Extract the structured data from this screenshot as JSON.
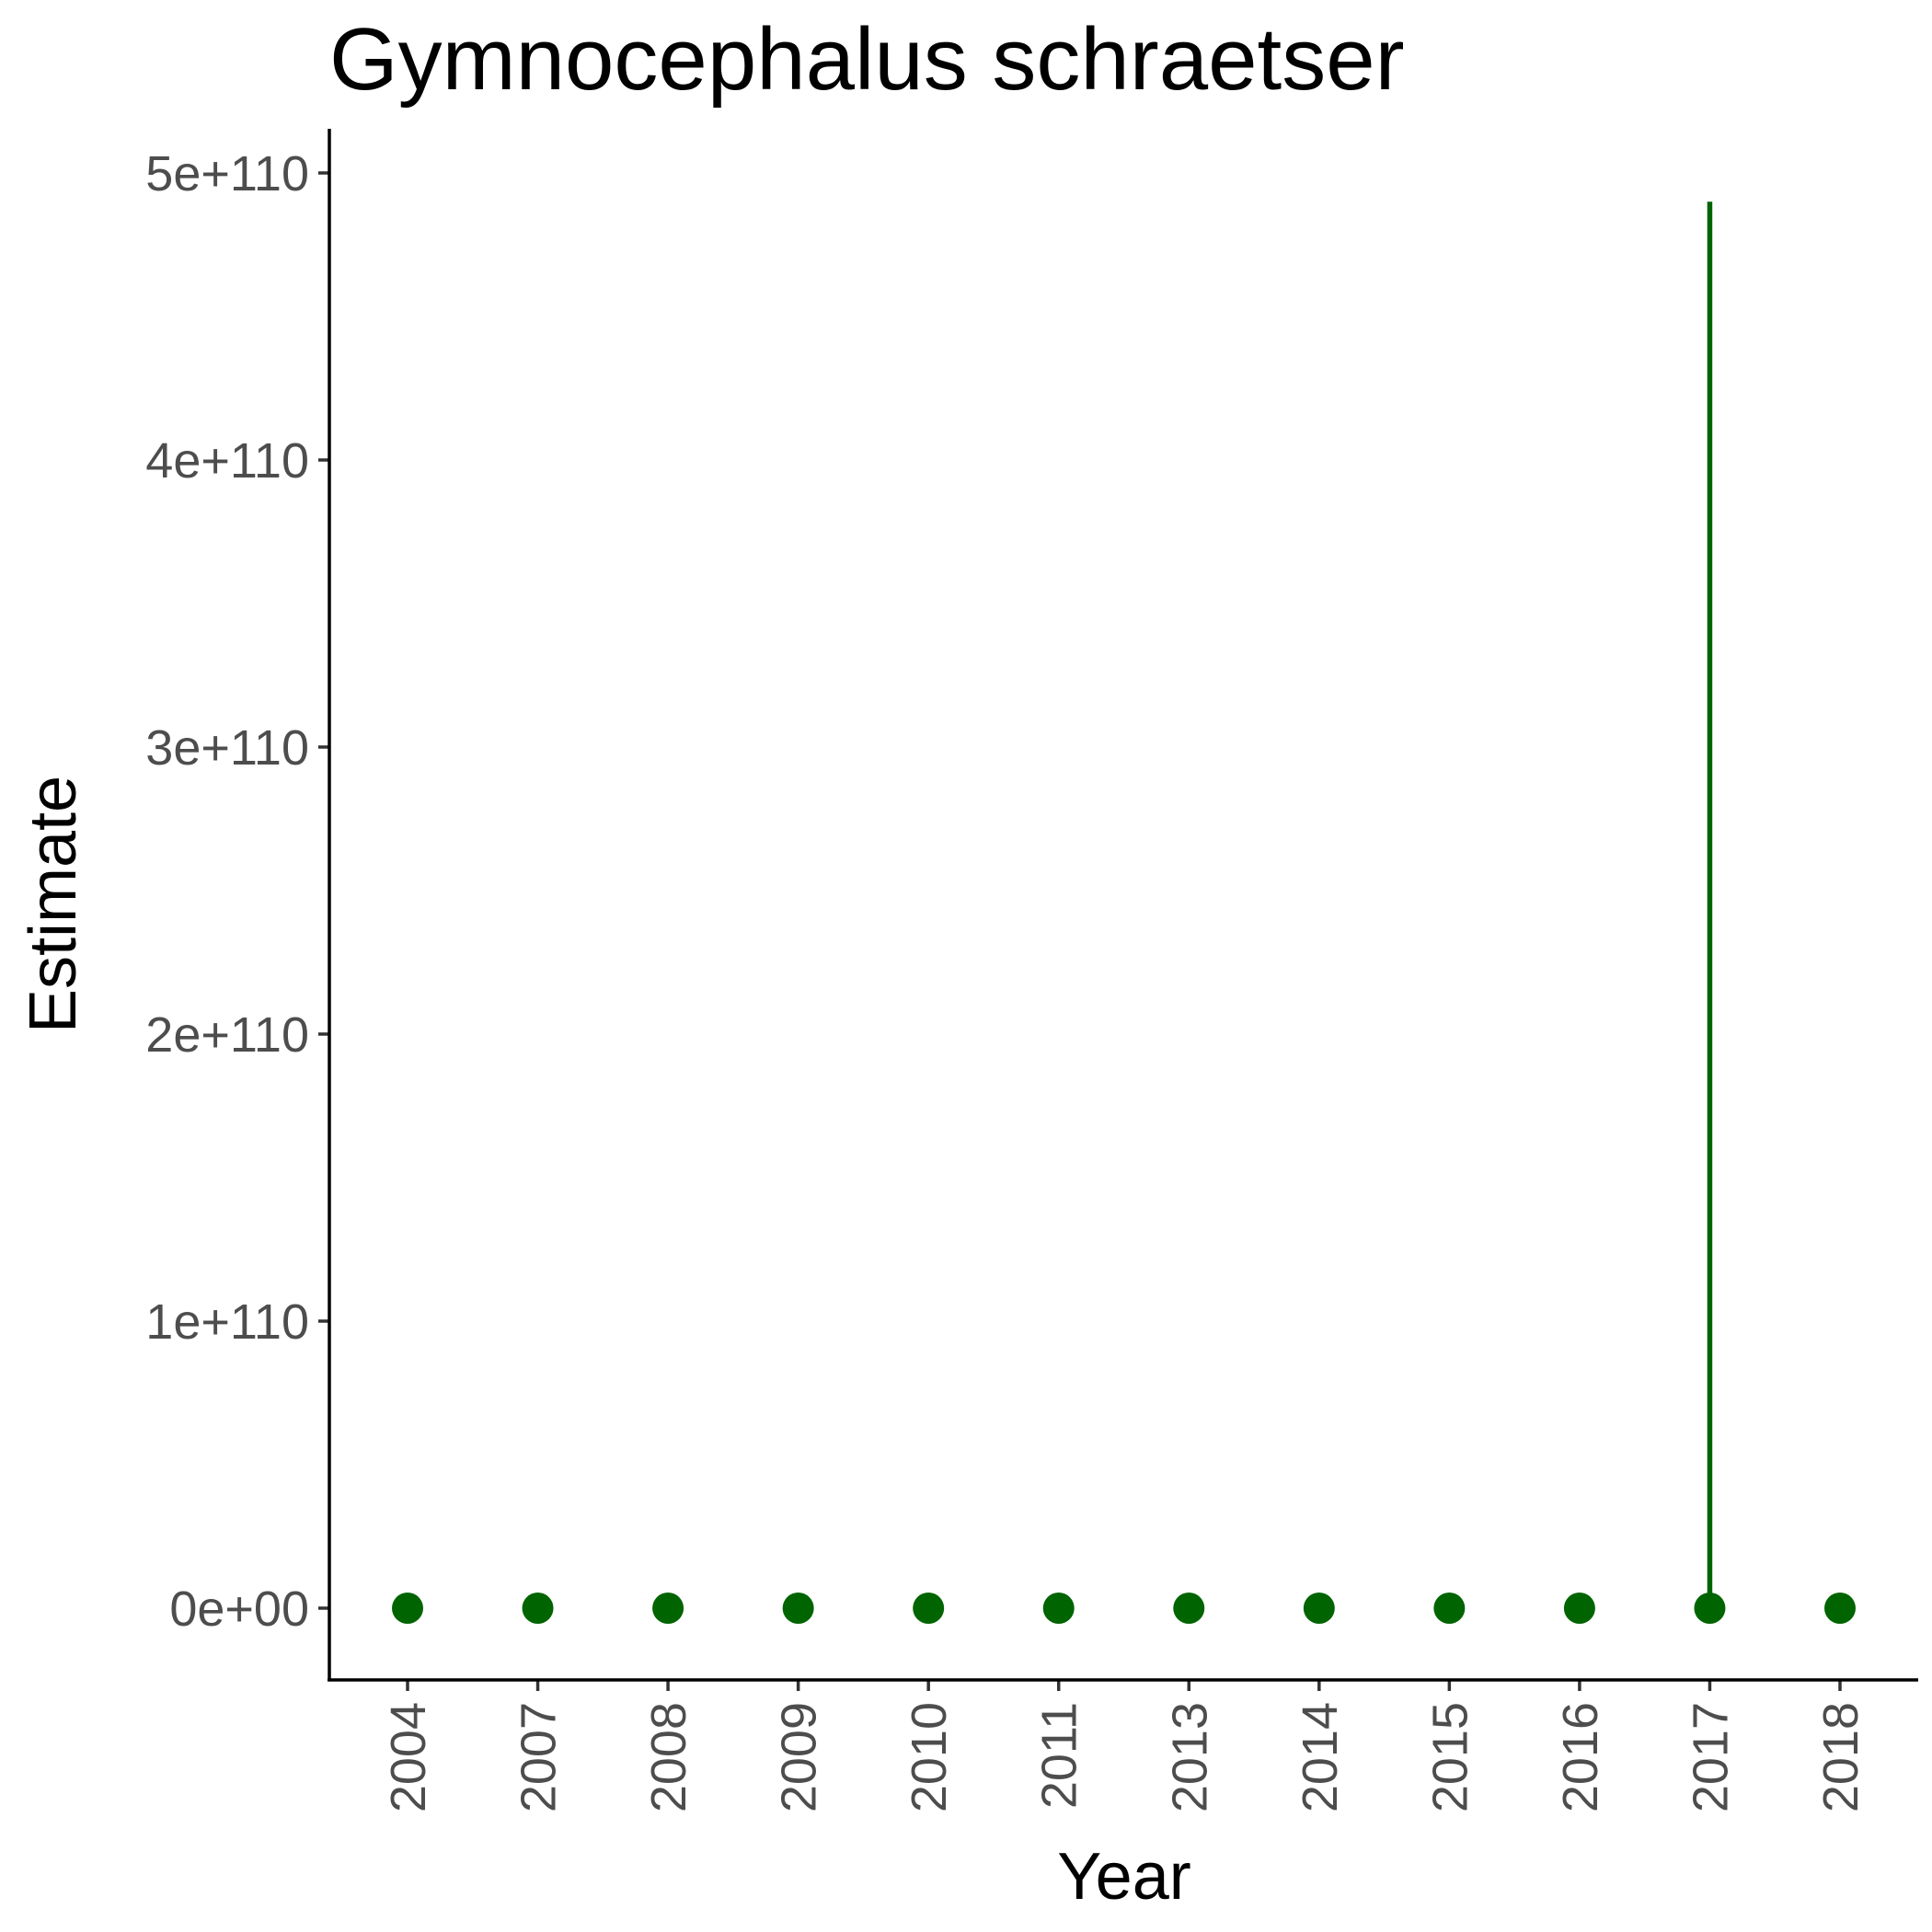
{
  "chart_data": {
    "type": "scatter",
    "title": "Gymnocephalus schraetser",
    "xlabel": "Year",
    "ylabel": "Estimate",
    "categories": [
      "2004",
      "2007",
      "2008",
      "2009",
      "2010",
      "2011",
      "2013",
      "2014",
      "2015",
      "2016",
      "2017",
      "2018"
    ],
    "series": [
      {
        "values": [
          0,
          0,
          0,
          0,
          0,
          0,
          0,
          0,
          0,
          0,
          0,
          0
        ],
        "upper": [
          0,
          0,
          0,
          0,
          0,
          0,
          0,
          0,
          0,
          0,
          4.9e+110,
          0
        ],
        "lower": [
          0,
          0,
          0,
          0,
          0,
          0,
          0,
          0,
          0,
          0,
          0,
          0
        ]
      }
    ],
    "yticks": [
      0,
      1e+110,
      2e+110,
      3e+110,
      4e+110,
      5e+110
    ],
    "ytick_labels": [
      "0e+00",
      "1e+110",
      "2e+110",
      "3e+110",
      "4e+110",
      "5e+110"
    ],
    "ylim": [
      -2.45e+109,
      5.145e+110
    ],
    "grid": false,
    "point_color": "#006400",
    "line_color": "#006400"
  }
}
